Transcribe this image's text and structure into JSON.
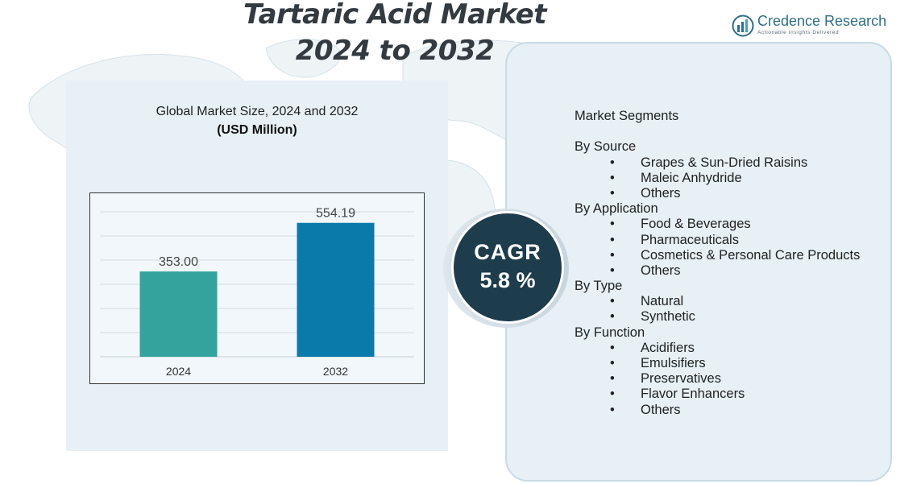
{
  "title": {
    "line1": "Tartaric Acid Market",
    "line2": "2024 to 2032"
  },
  "brand": {
    "name": "Credence Research",
    "tagline": "Actionable Insights Delivered"
  },
  "chart_data": {
    "type": "bar",
    "title": "Global Market Size, 2024 and 2032",
    "unit": "(USD Million)",
    "categories": [
      "2024",
      "2032"
    ],
    "values": [
      353.0,
      554.19
    ],
    "value_labels": [
      "353.00",
      "554.19"
    ],
    "colors": [
      "#34a39e",
      "#0a7aab"
    ],
    "ylim": [
      0,
      650
    ],
    "grid": true,
    "xlabel": "",
    "ylabel": ""
  },
  "cagr": {
    "label": "CAGR",
    "value": "5.8 %"
  },
  "segments": {
    "title": "Market Segments",
    "groups": [
      {
        "name": "By Source",
        "items": [
          "Grapes & Sun-Dried Raisins",
          "Maleic Anhydride",
          "Others"
        ]
      },
      {
        "name": "By Application",
        "items": [
          "Food & Beverages",
          "Pharmaceuticals",
          "Cosmetics & Personal Care Products",
          "Others"
        ]
      },
      {
        "name": "By Type",
        "items": [
          "Natural",
          "Synthetic"
        ]
      },
      {
        "name": "By Function",
        "items": [
          "Acidifiers",
          "Emulsifiers",
          "Preservatives",
          "Flavor Enhancers",
          "Others"
        ]
      }
    ],
    "bullet": "•"
  }
}
